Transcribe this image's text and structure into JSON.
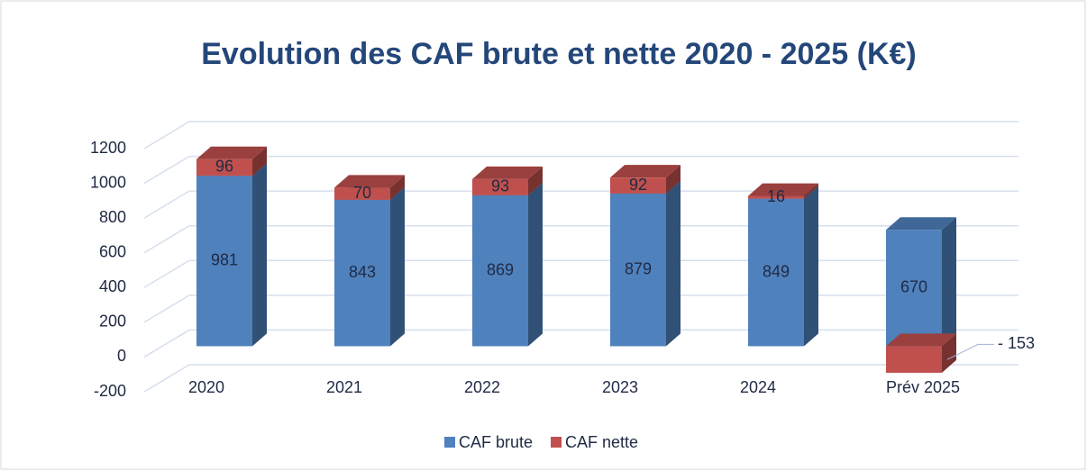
{
  "chart_data": {
    "type": "bar",
    "stacked": true,
    "three_d": true,
    "title": "Evolution des CAF brute et nette 2020 - 2025 (K€)",
    "categories": [
      "2020",
      "2021",
      "2022",
      "2023",
      "2024",
      "Prév 2025"
    ],
    "series": [
      {
        "name": "CAF brute",
        "color": "#4f81bd",
        "values": [
          981,
          843,
          869,
          879,
          849,
          670
        ]
      },
      {
        "name": "CAF nette",
        "color": "#c0504d",
        "values": [
          96,
          70,
          93,
          92,
          16,
          -153
        ],
        "value_labels": [
          "96",
          "70",
          "93",
          "92",
          "16",
          "- 153"
        ]
      }
    ],
    "ylim": [
      -200,
      1200
    ],
    "yticks": [
      -200,
      0,
      200,
      400,
      600,
      800,
      1000,
      1200
    ],
    "grid": true,
    "legend": "bottom"
  }
}
